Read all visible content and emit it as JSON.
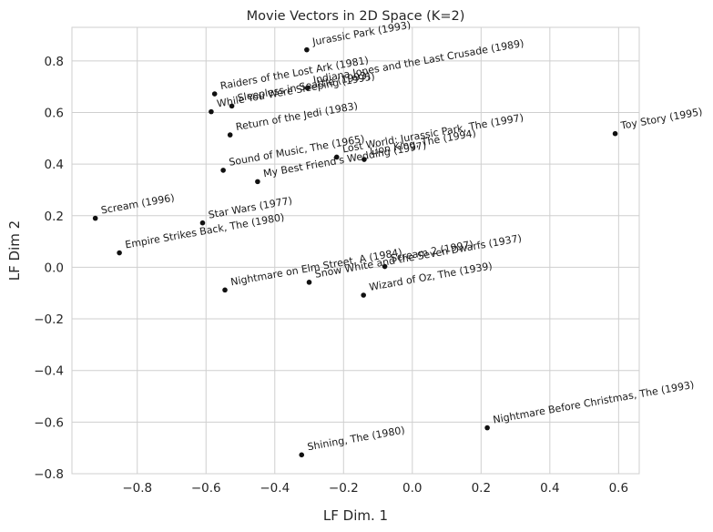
{
  "chart_data": {
    "type": "scatter",
    "title": "Movie Vectors in 2D Space (K=2)",
    "xlabel": "LF Dim. 1",
    "ylabel": "LF Dim 2",
    "xlim": [
      -0.99,
      0.66
    ],
    "ylim": [
      -0.8,
      0.93
    ],
    "xticks": [
      -0.8,
      -0.6,
      -0.4,
      -0.2,
      0.0,
      0.2,
      0.4,
      0.6
    ],
    "xtick_labels": [
      "−0.8",
      "−0.6",
      "−0.4",
      "−0.2",
      "0.0",
      "0.2",
      "0.4",
      "0.6"
    ],
    "yticks": [
      -0.8,
      -0.6,
      -0.4,
      -0.2,
      0.0,
      0.2,
      0.4,
      0.6,
      0.8
    ],
    "ytick_labels": [
      "−0.8",
      "−0.6",
      "−0.4",
      "−0.2",
      "0.0",
      "0.2",
      "0.4",
      "0.6",
      "0.8"
    ],
    "grid": true,
    "label_rotation_deg": 10,
    "points": [
      {
        "label": "Jurassic Park (1993)",
        "x": -0.307,
        "y": 0.843
      },
      {
        "label": "Indiana Jones and the Last Crusade (1989)",
        "x": -0.305,
        "y": 0.695
      },
      {
        "label": "Raiders of the Lost Ark (1981)",
        "x": -0.575,
        "y": 0.672
      },
      {
        "label": "Sleepless in Seattle (1993)",
        "x": -0.525,
        "y": 0.625
      },
      {
        "label": "While You Were Sleeping (1995)",
        "x": -0.585,
        "y": 0.603
      },
      {
        "label": "Return of the Jedi (1983)",
        "x": -0.53,
        "y": 0.513
      },
      {
        "label": "Toy Story (1995)",
        "x": 0.59,
        "y": 0.518
      },
      {
        "label": "Sound of Music, The (1965)",
        "x": -0.55,
        "y": 0.376
      },
      {
        "label": "Lost World: Jurassic Park, The (1997)",
        "x": -0.22,
        "y": 0.427
      },
      {
        "label": "Lion King, The (1994)",
        "x": -0.14,
        "y": 0.418
      },
      {
        "label": "My Best Friend's Wedding (1997)",
        "x": -0.45,
        "y": 0.332
      },
      {
        "label": "Scream (1996)",
        "x": -0.922,
        "y": 0.19
      },
      {
        "label": "Star Wars (1977)",
        "x": -0.61,
        "y": 0.172
      },
      {
        "label": "Empire Strikes Back, The (1980)",
        "x": -0.852,
        "y": 0.056
      },
      {
        "label": "Scream 2 (1997)",
        "x": -0.08,
        "y": 0.003
      },
      {
        "label": "Nightmare on Elm Street, A (1984)",
        "x": -0.545,
        "y": -0.088
      },
      {
        "label": "Snow White and the Seven Dwarfs (1937)",
        "x": -0.3,
        "y": -0.058
      },
      {
        "label": "Wizard of Oz, The (1939)",
        "x": -0.142,
        "y": -0.108
      },
      {
        "label": "Nightmare Before Christmas, The (1993)",
        "x": 0.218,
        "y": -0.622
      },
      {
        "label": "Shining, The (1980)",
        "x": -0.322,
        "y": -0.727
      }
    ]
  }
}
